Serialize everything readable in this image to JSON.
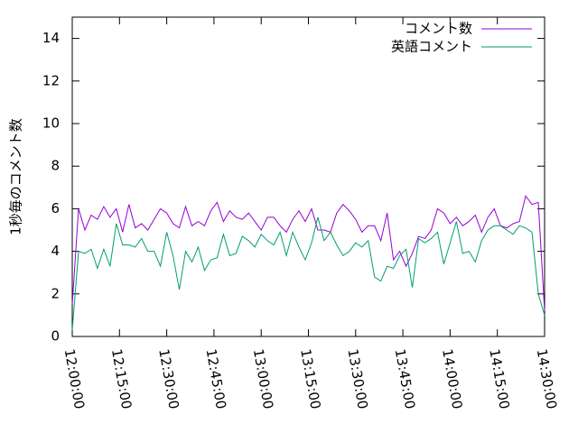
{
  "chart_data": {
    "type": "line",
    "y_label": "1秒毎のコメント数",
    "x": [
      "12:00:00",
      "12:02:00",
      "12:04:00",
      "12:06:00",
      "12:08:00",
      "12:10:00",
      "12:12:00",
      "12:14:00",
      "12:16:00",
      "12:18:00",
      "12:20:00",
      "12:22:00",
      "12:24:00",
      "12:26:00",
      "12:28:00",
      "12:30:00",
      "12:32:00",
      "12:34:00",
      "12:36:00",
      "12:38:00",
      "12:40:00",
      "12:42:00",
      "12:44:00",
      "12:46:00",
      "12:48:00",
      "12:50:00",
      "12:52:00",
      "12:54:00",
      "12:56:00",
      "12:58:00",
      "13:00:00",
      "13:02:00",
      "13:04:00",
      "13:06:00",
      "13:08:00",
      "13:10:00",
      "13:12:00",
      "13:14:00",
      "13:16:00",
      "13:18:00",
      "13:20:00",
      "13:22:00",
      "13:24:00",
      "13:26:00",
      "13:28:00",
      "13:30:00",
      "13:32:00",
      "13:34:00",
      "13:36:00",
      "13:38:00",
      "13:40:00",
      "13:42:00",
      "13:44:00",
      "13:46:00",
      "13:48:00",
      "13:50:00",
      "13:52:00",
      "13:54:00",
      "13:56:00",
      "13:58:00",
      "14:00:00",
      "14:02:00",
      "14:04:00",
      "14:06:00",
      "14:08:00",
      "14:10:00",
      "14:12:00",
      "14:14:00",
      "14:16:00",
      "14:18:00",
      "14:20:00",
      "14:22:00",
      "14:24:00",
      "14:26:00",
      "14:28:00",
      "14:30:00"
    ],
    "series": [
      {
        "name": "コメント数",
        "color": "#9400d3",
        "values": [
          1.5,
          6.0,
          5.0,
          5.7,
          5.5,
          6.1,
          5.6,
          6.0,
          4.9,
          6.2,
          5.1,
          5.3,
          5.0,
          5.5,
          6.0,
          5.8,
          5.3,
          5.1,
          6.1,
          5.2,
          5.4,
          5.2,
          5.9,
          6.3,
          5.4,
          5.9,
          5.6,
          5.5,
          5.8,
          5.4,
          5.0,
          5.6,
          5.6,
          5.2,
          4.9,
          5.5,
          5.9,
          5.4,
          6.0,
          5.0,
          5.0,
          4.9,
          5.8,
          6.2,
          5.9,
          5.5,
          4.9,
          5.2,
          5.2,
          4.5,
          5.8,
          3.6,
          4.0,
          3.3,
          3.9,
          4.7,
          4.6,
          5.0,
          6.0,
          5.8,
          5.3,
          5.6,
          5.2,
          5.4,
          5.7,
          4.9,
          5.6,
          6.0,
          5.2,
          5.1,
          5.3,
          5.4,
          6.6,
          6.2,
          6.3,
          1.2
        ]
      },
      {
        "name": "英語コメント",
        "color": "#009e73",
        "values": [
          0.3,
          4.0,
          3.9,
          4.1,
          3.2,
          4.1,
          3.3,
          5.3,
          4.3,
          4.3,
          4.2,
          4.6,
          4.0,
          4.0,
          3.3,
          4.9,
          3.8,
          2.2,
          4.0,
          3.5,
          4.2,
          3.1,
          3.6,
          3.7,
          4.8,
          3.8,
          3.9,
          4.7,
          4.5,
          4.2,
          4.8,
          4.5,
          4.3,
          4.9,
          3.8,
          4.9,
          4.2,
          3.6,
          4.4,
          5.6,
          4.5,
          4.9,
          4.3,
          3.8,
          4.0,
          4.4,
          4.2,
          4.5,
          2.8,
          2.6,
          3.3,
          3.2,
          3.8,
          4.1,
          2.3,
          4.6,
          4.4,
          4.6,
          4.9,
          3.4,
          4.4,
          5.4,
          3.9,
          4.0,
          3.5,
          4.5,
          5.0,
          5.2,
          5.2,
          5.0,
          4.8,
          5.2,
          5.1,
          4.9,
          2.0,
          1.0
        ]
      }
    ],
    "xlim": [
      "12:00:00",
      "14:30:00"
    ],
    "xticks": [
      "12:00:00",
      "12:15:00",
      "12:30:00",
      "12:45:00",
      "13:00:00",
      "13:15:00",
      "13:30:00",
      "13:45:00",
      "14:00:00",
      "14:15:00",
      "14:30:00"
    ],
    "ylim": [
      0,
      15
    ],
    "yticks": [
      0,
      2,
      4,
      6,
      8,
      10,
      12,
      14
    ],
    "legend": "top-right"
  }
}
